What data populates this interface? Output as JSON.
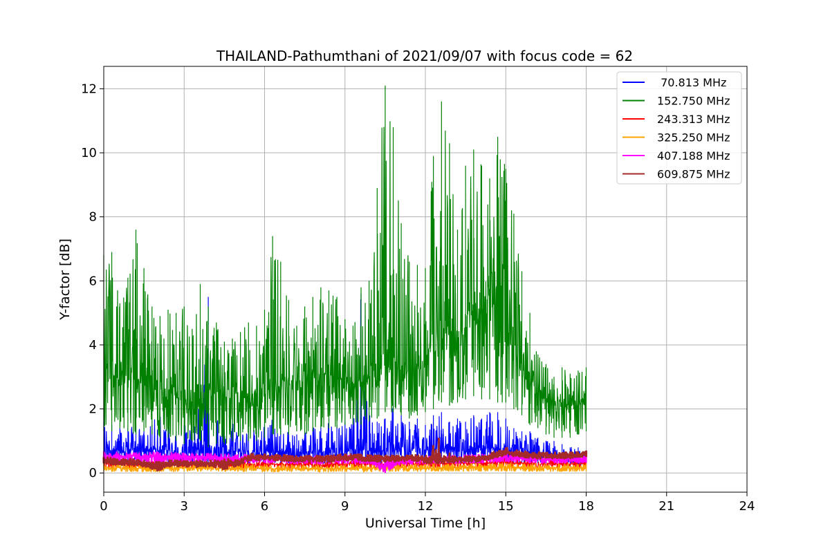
{
  "chart_data": {
    "type": "line",
    "title": "THAILAND-Pathumthani of 2021/09/07 with focus code = 62",
    "xlabel": "Universal Time [h]",
    "ylabel": "Y-factor [dB]",
    "xlim": [
      0,
      24
    ],
    "ylim": [
      -0.6,
      12.7
    ],
    "xticks": [
      0,
      3,
      6,
      9,
      12,
      15,
      18,
      21,
      24
    ],
    "yticks": [
      0,
      2,
      4,
      6,
      8,
      10,
      12
    ],
    "grid": true,
    "legend_position": "top-right",
    "series": [
      {
        "name": " 70.813 MHz",
        "color": "#0000ff",
        "x": [
          0,
          0.3,
          0.6,
          0.9,
          1.2,
          1.5,
          1.8,
          2.1,
          2.4,
          2.7,
          3,
          3.3,
          3.6,
          3.9,
          4.2,
          4.5,
          4.8,
          5.1,
          5.4,
          5.7,
          6,
          6.3,
          6.6,
          6.9,
          7.2,
          7.5,
          7.8,
          8.1,
          8.4,
          8.7,
          9,
          9.3,
          9.6,
          9.9,
          10.2,
          10.5,
          10.8,
          11.1,
          11.4,
          11.7,
          12,
          12.3,
          12.6,
          12.9,
          13.2,
          13.5,
          13.8,
          14.1,
          14.4,
          14.7,
          15,
          15.3,
          15.6,
          15.9,
          16.2,
          16.5,
          16.8,
          17.1,
          17.4,
          17.7,
          18
        ],
        "y_base": [
          0.7,
          0.75,
          0.7,
          0.7,
          0.75,
          0.7,
          0.75,
          0.7,
          0.7,
          0.6,
          0.65,
          0.7,
          0.75,
          0.7,
          0.7,
          0.7,
          0.7,
          0.7,
          0.65,
          0.65,
          0.7,
          0.7,
          0.65,
          0.6,
          0.6,
          0.6,
          0.65,
          0.7,
          0.7,
          0.7,
          0.7,
          0.75,
          0.75,
          0.7,
          0.7,
          0.7,
          0.8,
          0.75,
          0.7,
          0.75,
          0.7,
          0.75,
          0.8,
          0.75,
          0.7,
          0.75,
          0.75,
          0.75,
          0.8,
          0.8,
          0.75,
          0.7,
          0.7,
          0.7,
          0.6,
          0.6,
          0.55,
          0.5,
          0.45,
          0.45,
          0.45
        ],
        "y_peak": [
          1.6,
          1.5,
          1.4,
          1.4,
          1.5,
          1.3,
          1.5,
          2.1,
          1.5,
          1.3,
          1.5,
          1.6,
          3.6,
          5.5,
          2.0,
          1.5,
          1.7,
          1.5,
          1.3,
          1.4,
          1.5,
          1.8,
          1.4,
          1.3,
          1.2,
          1.3,
          1.4,
          1.5,
          1.7,
          1.5,
          1.6,
          1.8,
          5.6,
          1.9,
          1.6,
          1.7,
          2.2,
          1.8,
          1.6,
          1.7,
          1.5,
          1.8,
          1.9,
          1.6,
          1.7,
          1.6,
          1.8,
          1.7,
          1.9,
          1.9,
          1.7,
          1.4,
          1.3,
          1.3,
          1.1,
          1.0,
          1.0,
          0.9,
          0.8,
          0.8,
          0.7
        ],
        "y_low": [
          0.3,
          0.35,
          0.3,
          0.3,
          0.3,
          0.3,
          0.3,
          0.3,
          0.3,
          0.3,
          0.3,
          0.3,
          0.3,
          0.3,
          0.3,
          0.3,
          0.3,
          0.3,
          0.3,
          0.3,
          0.3,
          0.3,
          0.3,
          0.3,
          0.3,
          0.3,
          0.3,
          0.3,
          0.3,
          0.3,
          0.3,
          0.3,
          0.3,
          0.3,
          0.3,
          0.3,
          0.35,
          0.3,
          0.3,
          0.3,
          0.3,
          0.3,
          0.35,
          0.3,
          0.3,
          0.3,
          0.3,
          0.3,
          0.35,
          0.35,
          0.3,
          0.3,
          0.3,
          0.3,
          0.3,
          0.3,
          0.25,
          0.25,
          0.2,
          0.2,
          0.2
        ]
      },
      {
        "name": "152.750 MHz",
        "color": "#008000",
        "x": [
          0,
          0.3,
          0.6,
          0.9,
          1.2,
          1.5,
          1.8,
          2.1,
          2.4,
          2.7,
          3,
          3.3,
          3.6,
          3.9,
          4.2,
          4.5,
          4.8,
          5.1,
          5.4,
          5.7,
          6,
          6.3,
          6.6,
          6.9,
          7.2,
          7.5,
          7.8,
          8.1,
          8.4,
          8.7,
          9,
          9.3,
          9.6,
          9.9,
          10.2,
          10.5,
          10.8,
          11.1,
          11.4,
          11.7,
          12,
          12.3,
          12.6,
          12.9,
          13.2,
          13.5,
          13.8,
          14.1,
          14.4,
          14.7,
          15,
          15.3,
          15.6,
          15.9,
          16.2,
          16.5,
          16.8,
          17.1,
          17.4,
          17.7,
          18
        ],
        "y_base": [
          3.2,
          3.0,
          3.1,
          3.0,
          3.2,
          3.1,
          2.8,
          2.6,
          2.5,
          2.4,
          2.2,
          2.2,
          2.3,
          2.5,
          2.4,
          2.3,
          2.3,
          2.4,
          2.3,
          2.4,
          2.5,
          2.6,
          2.7,
          2.8,
          2.8,
          2.9,
          3.0,
          3.1,
          3.0,
          2.9,
          2.9,
          2.8,
          2.9,
          3.0,
          3.2,
          3.6,
          3.6,
          3.3,
          3.1,
          3.3,
          3.6,
          4.2,
          4.6,
          4.3,
          4.0,
          4.5,
          5.0,
          5.2,
          5.6,
          5.3,
          4.5,
          3.8,
          3.3,
          2.9,
          2.5,
          2.3,
          2.2,
          2.1,
          2.1,
          2.2,
          2.2
        ],
        "y_peak": [
          6.8,
          6.9,
          5.3,
          6.1,
          7.6,
          6.4,
          5.2,
          4.9,
          5.1,
          5.0,
          5.2,
          4.5,
          5.9,
          5.2,
          4.7,
          4.1,
          4.2,
          4.4,
          4.7,
          4.6,
          5.1,
          7.4,
          6.6,
          5.4,
          4.6,
          5.2,
          5.5,
          5.8,
          5.7,
          5.5,
          4.8,
          4.6,
          5.8,
          6.0,
          8.9,
          12.1,
          10.8,
          7.8,
          6.6,
          6.5,
          6.4,
          9.9,
          11.6,
          10.3,
          7.6,
          9.6,
          10.1,
          9.6,
          9.2,
          10.5,
          9.5,
          8.1,
          6.3,
          5.0,
          3.7,
          3.4,
          3.0,
          3.3,
          3.1,
          3.2,
          3.3
        ],
        "y_low": [
          1.3,
          1.3,
          1.4,
          1.3,
          1.2,
          1.3,
          1.2,
          1.1,
          1.1,
          1.0,
          0.9,
          1.0,
          1.0,
          0.8,
          0.9,
          0.9,
          1.0,
          1.0,
          1.0,
          1.0,
          1.1,
          1.2,
          1.2,
          1.2,
          1.3,
          1.2,
          1.3,
          1.4,
          1.4,
          1.4,
          1.5,
          1.5,
          1.5,
          1.6,
          1.7,
          1.9,
          1.9,
          1.8,
          1.7,
          1.8,
          1.9,
          2.0,
          2.2,
          2.1,
          2.2,
          2.3,
          2.4,
          2.3,
          2.3,
          2.2,
          2.2,
          2.0,
          1.8,
          1.5,
          1.4,
          1.2,
          1.1,
          1.1,
          1.1,
          1.2,
          1.3
        ]
      },
      {
        "name": "243.313 MHz",
        "color": "#ff0000",
        "x": [
          0,
          1,
          2,
          3,
          4,
          5,
          6,
          7,
          8,
          9,
          10,
          11,
          12,
          13,
          14,
          15,
          16,
          17,
          18
        ],
        "y_base": [
          0.3,
          0.28,
          0.26,
          0.27,
          0.28,
          0.26,
          0.28,
          0.27,
          0.26,
          0.28,
          0.27,
          0.3,
          0.28,
          0.3,
          0.3,
          0.32,
          0.3,
          0.28,
          0.28
        ],
        "y_peak": [
          0.45,
          0.42,
          0.4,
          0.42,
          0.45,
          0.4,
          0.42,
          0.4,
          0.4,
          0.42,
          0.4,
          0.45,
          0.42,
          0.45,
          0.45,
          0.48,
          0.45,
          0.42,
          0.42
        ],
        "y_low": [
          0.15,
          0.14,
          0.12,
          0.13,
          0.14,
          0.12,
          0.14,
          0.13,
          0.12,
          0.14,
          0.13,
          0.15,
          0.14,
          0.15,
          0.15,
          0.16,
          0.15,
          0.14,
          0.14
        ]
      },
      {
        "name": "325.250 MHz",
        "color": "#ffa500",
        "x": [
          0,
          1,
          2,
          3,
          4,
          5,
          6,
          7,
          8,
          9,
          10,
          11,
          12,
          13,
          14,
          15,
          16,
          17,
          18
        ],
        "y_base": [
          0.18,
          0.15,
          0.14,
          0.16,
          0.17,
          0.14,
          0.15,
          0.14,
          0.13,
          0.15,
          0.14,
          0.16,
          0.15,
          0.17,
          0.17,
          0.18,
          0.17,
          0.16,
          0.16
        ],
        "y_peak": [
          0.32,
          0.28,
          0.26,
          0.3,
          0.32,
          0.28,
          0.28,
          0.26,
          0.25,
          0.28,
          0.26,
          0.3,
          0.28,
          0.3,
          0.3,
          0.32,
          0.3,
          0.28,
          0.3
        ],
        "y_low": [
          0.05,
          0.04,
          0.03,
          0.05,
          0.05,
          0.04,
          0.04,
          0.03,
          0.03,
          0.04,
          0.03,
          0.05,
          0.04,
          0.05,
          0.05,
          0.06,
          0.05,
          0.04,
          0.05
        ]
      },
      {
        "name": "407.188 MHz",
        "color": "#ff00ff",
        "x": [
          0,
          1,
          2,
          3,
          4,
          5,
          6,
          7,
          8,
          9,
          10,
          10.5,
          11,
          12,
          13,
          14,
          15,
          16,
          17,
          18
        ],
        "y_base": [
          0.55,
          0.5,
          0.52,
          0.5,
          0.5,
          0.45,
          0.45,
          0.42,
          0.4,
          0.42,
          0.4,
          0.2,
          0.38,
          0.4,
          0.42,
          0.45,
          0.48,
          0.45,
          0.42,
          0.45
        ],
        "y_peak": [
          0.68,
          0.62,
          0.65,
          0.62,
          0.62,
          0.58,
          0.58,
          0.55,
          0.52,
          0.55,
          0.52,
          0.45,
          0.5,
          0.52,
          0.55,
          0.58,
          0.6,
          0.58,
          0.55,
          0.58
        ],
        "y_low": [
          0.4,
          0.36,
          0.1,
          0.36,
          0.36,
          0.32,
          0.32,
          0.3,
          0.28,
          0.3,
          0.28,
          0.0,
          0.26,
          0.28,
          0.3,
          0.32,
          0.35,
          0.32,
          0.3,
          0.32
        ]
      },
      {
        "name": "609.875 MHz",
        "color": "#a52a2a",
        "x": [
          0,
          0.5,
          1,
          1.5,
          2,
          2.5,
          3,
          3.5,
          4,
          4.5,
          5,
          5.5,
          6,
          6.5,
          7,
          7.5,
          8,
          8.5,
          9,
          9.5,
          10,
          10.5,
          11,
          11.5,
          12,
          12.5,
          13,
          13.5,
          14,
          14.5,
          15,
          15.5,
          16,
          16.5,
          17,
          17.5,
          18
        ],
        "y_base": [
          0.4,
          0.35,
          0.35,
          0.3,
          0.25,
          0.3,
          0.3,
          0.28,
          0.3,
          0.35,
          0.32,
          0.5,
          0.5,
          0.48,
          0.45,
          0.45,
          0.45,
          0.45,
          0.5,
          0.48,
          0.45,
          0.45,
          0.45,
          0.48,
          0.42,
          0.4,
          0.42,
          0.45,
          0.45,
          0.55,
          0.65,
          0.6,
          0.55,
          0.55,
          0.55,
          0.55,
          0.6
        ],
        "y_peak": [
          0.5,
          0.45,
          0.45,
          0.4,
          0.35,
          0.4,
          0.4,
          0.38,
          0.4,
          0.45,
          0.42,
          0.6,
          0.6,
          0.58,
          0.55,
          0.55,
          0.55,
          0.55,
          0.6,
          0.58,
          0.55,
          0.55,
          0.55,
          0.58,
          0.52,
          1.1,
          0.52,
          0.55,
          0.55,
          0.65,
          0.8,
          0.7,
          0.65,
          0.65,
          0.65,
          0.65,
          0.7
        ],
        "y_low": [
          0.3,
          0.25,
          0.25,
          0.2,
          0.05,
          0.2,
          0.2,
          0.18,
          0.2,
          0.1,
          0.22,
          0.4,
          0.4,
          0.38,
          0.35,
          0.35,
          0.35,
          0.35,
          0.4,
          0.38,
          0.35,
          0.35,
          0.35,
          0.38,
          0.32,
          0.3,
          0.32,
          0.35,
          0.35,
          0.45,
          0.55,
          0.5,
          0.45,
          0.45,
          0.45,
          0.45,
          0.5
        ]
      }
    ]
  }
}
